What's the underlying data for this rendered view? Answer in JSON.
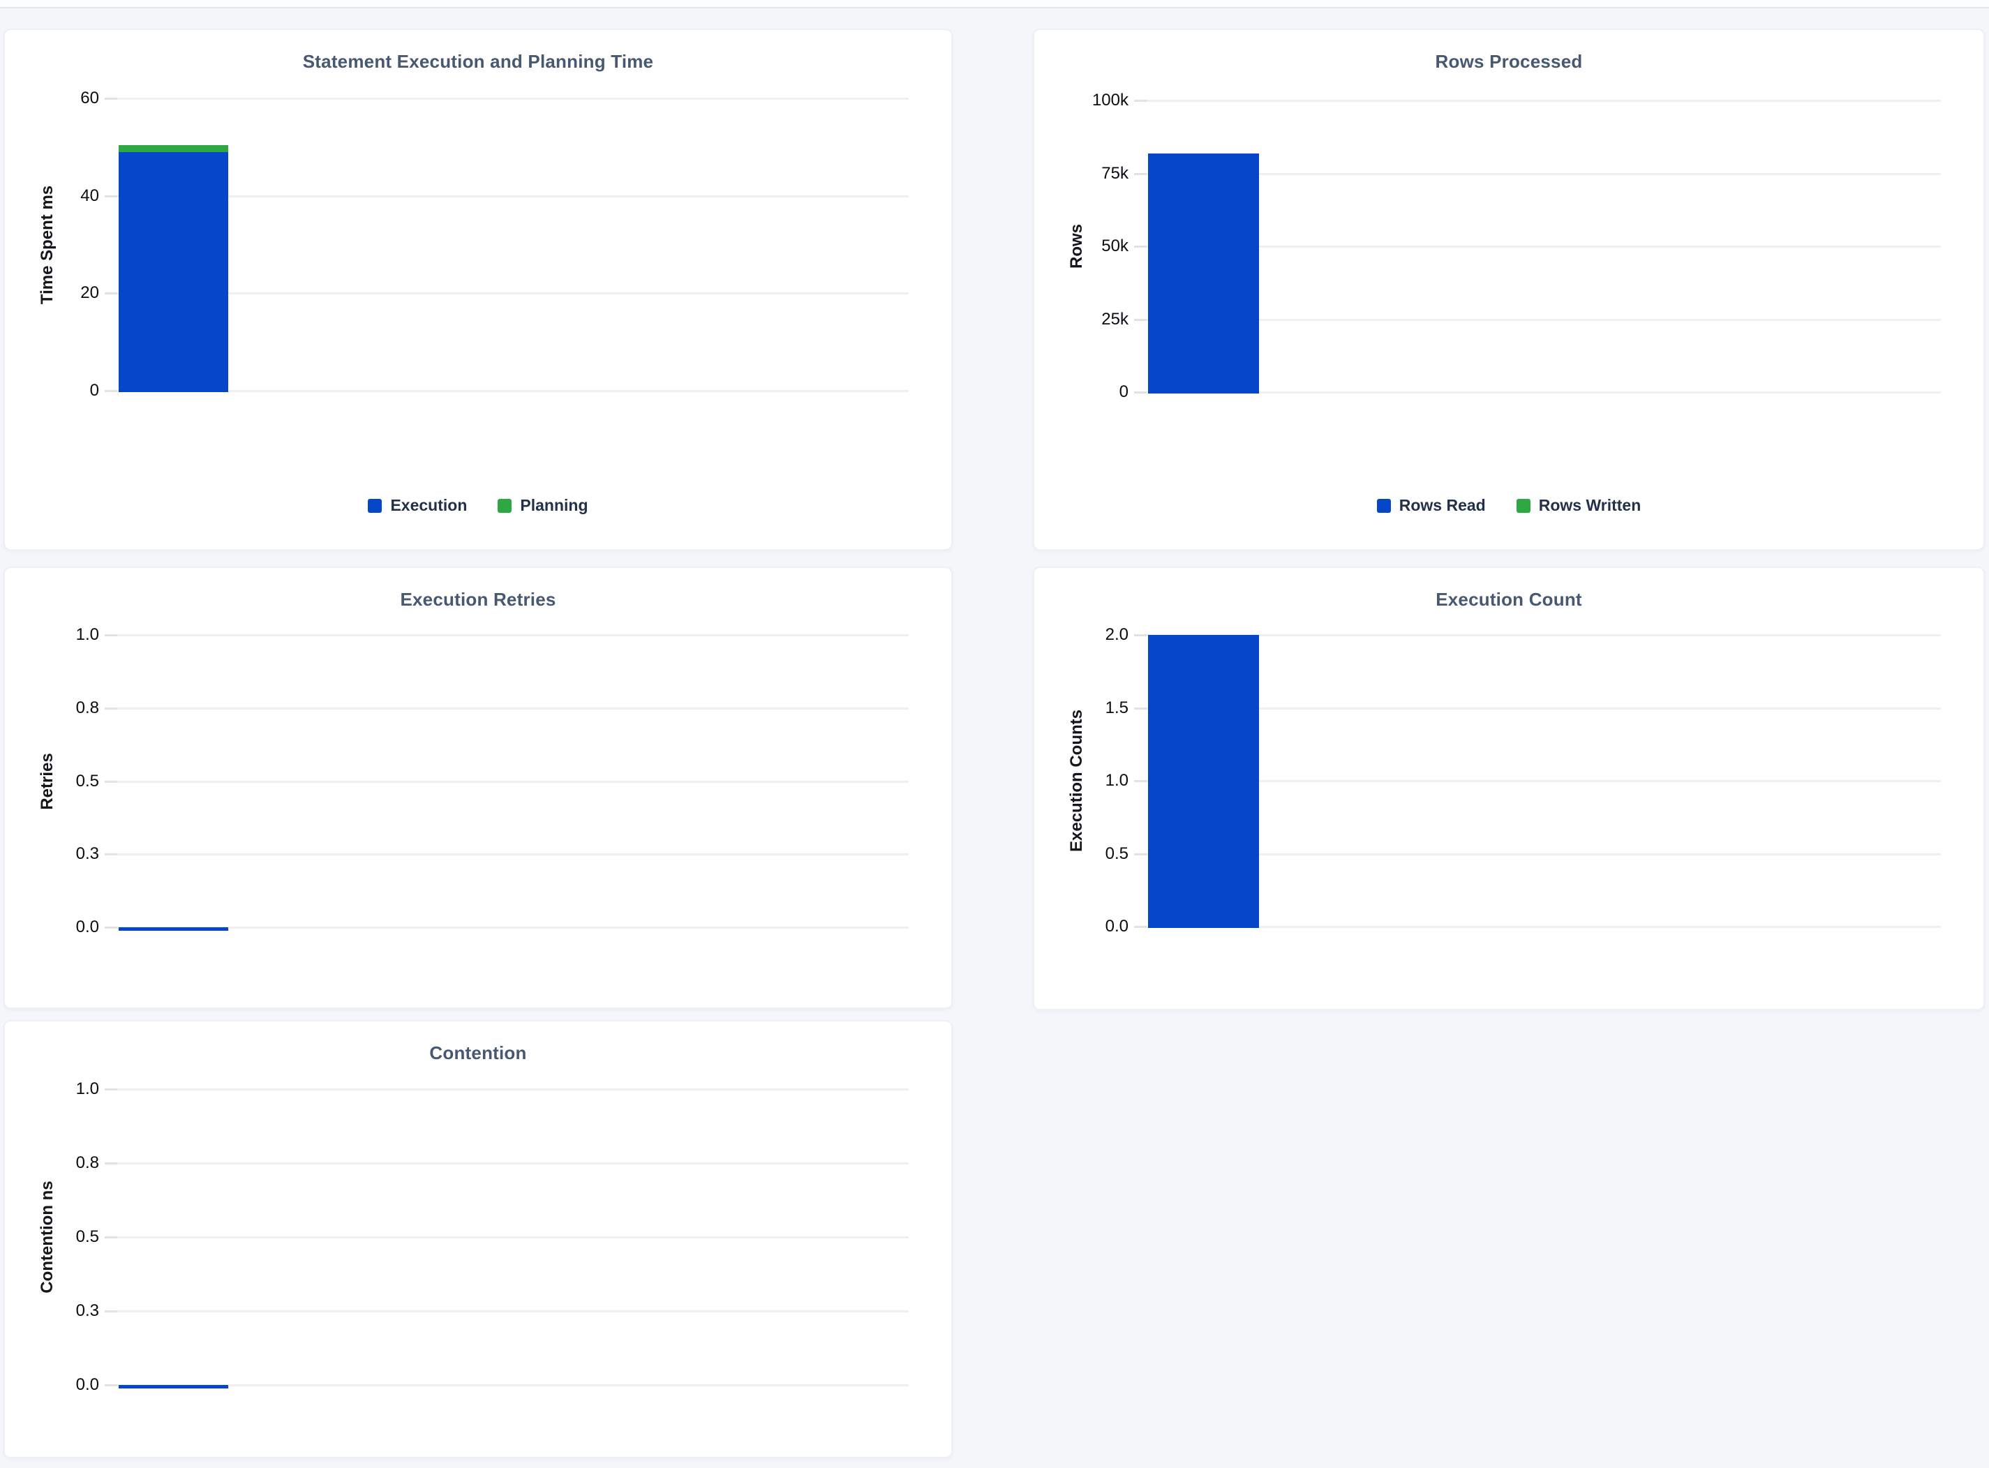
{
  "colors": {
    "bar_blue": "#0646C8",
    "bar_green": "#2DA843",
    "title_text": "#475872",
    "axis_text": "#0A0C10",
    "legend_text": "#22304A",
    "page_background": "#F4F6FA",
    "card_background": "#FFFFFF",
    "gridline": "#EFEFEF"
  },
  "chart_data": [
    {
      "type": "bar",
      "title": "Statement Execution and Planning Time",
      "ylabel": "Time Spent ms",
      "ylim": [
        0,
        60
      ],
      "grid": true,
      "legend_position": "bottom-center",
      "yticks": [
        {
          "label": "60",
          "value": 60
        },
        {
          "label": "40",
          "value": 40
        },
        {
          "label": "20",
          "value": 20
        },
        {
          "label": "0",
          "value": 0
        }
      ],
      "series": [
        {
          "name": "Execution",
          "value": 49,
          "color": "#0646C8"
        },
        {
          "name": "Planning",
          "value": 1.4,
          "color": "#2DA843"
        }
      ],
      "legend": [
        {
          "label": "Execution",
          "color": "#0646C8"
        },
        {
          "label": "Planning",
          "color": "#2DA843"
        }
      ]
    },
    {
      "type": "bar",
      "title": "Rows Processed",
      "ylabel": "Rows",
      "ylim": [
        0,
        100000
      ],
      "grid": true,
      "legend_position": "bottom-center",
      "yticks": [
        {
          "label": "100k",
          "value": 100000
        },
        {
          "label": "75k",
          "value": 75000
        },
        {
          "label": "50k",
          "value": 50000
        },
        {
          "label": "25k",
          "value": 25000
        },
        {
          "label": "0",
          "value": 0
        }
      ],
      "series": [
        {
          "name": "Rows Read",
          "value": 81700,
          "color": "#0646C8"
        },
        {
          "name": "Rows Written",
          "value": 0,
          "color": "#2DA843"
        }
      ],
      "legend": [
        {
          "label": "Rows Read",
          "color": "#0646C8"
        },
        {
          "label": "Rows Written",
          "color": "#2DA843"
        }
      ]
    },
    {
      "type": "bar",
      "title": "Execution Retries",
      "ylabel": "Retries",
      "ylim": [
        0,
        1
      ],
      "grid": true,
      "yticks": [
        {
          "label": "1.0",
          "value": 1
        },
        {
          "label": "0.8",
          "value": 0.75
        },
        {
          "label": "0.5",
          "value": 0.5
        },
        {
          "label": "0.3",
          "value": 0.25
        },
        {
          "label": "0.0",
          "value": 0
        }
      ],
      "series": [
        {
          "name": "Retries",
          "value": 0,
          "color": "#0646C8"
        }
      ]
    },
    {
      "type": "bar",
      "title": "Execution Count",
      "ylabel": "Execution Counts",
      "ylim": [
        0,
        2
      ],
      "grid": true,
      "yticks": [
        {
          "label": "2.0",
          "value": 2
        },
        {
          "label": "1.5",
          "value": 1.5
        },
        {
          "label": "1.0",
          "value": 1
        },
        {
          "label": "0.5",
          "value": 0.5
        },
        {
          "label": "0.0",
          "value": 0
        }
      ],
      "series": [
        {
          "name": "Execution Count",
          "value": 2,
          "color": "#0646C8"
        }
      ]
    },
    {
      "type": "bar",
      "title": "Contention",
      "ylabel": "Contention ns",
      "ylim": [
        0,
        1
      ],
      "grid": true,
      "yticks": [
        {
          "label": "1.0",
          "value": 1
        },
        {
          "label": "0.8",
          "value": 0.75
        },
        {
          "label": "0.5",
          "value": 0.5
        },
        {
          "label": "0.3",
          "value": 0.25
        },
        {
          "label": "0.0",
          "value": 0
        }
      ],
      "series": [
        {
          "name": "Contention",
          "value": 0,
          "color": "#0646C8"
        }
      ]
    }
  ]
}
